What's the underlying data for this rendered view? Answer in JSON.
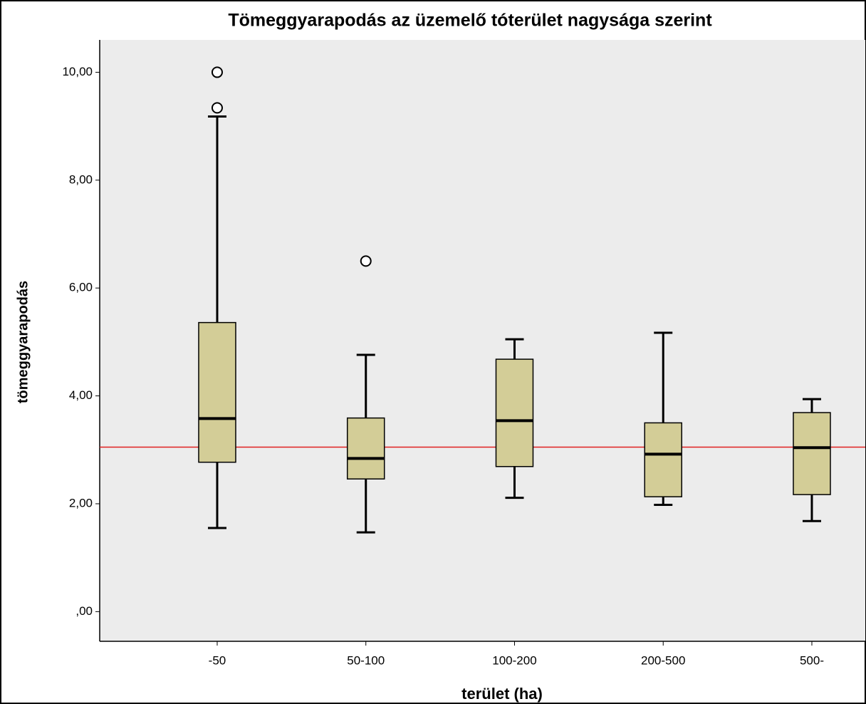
{
  "chart_data": {
    "type": "box",
    "title": "Tömeggyarapodás az üzemelő tóterület nagysága szerint",
    "x_label": "terület (ha)",
    "y_label": "tömeggyarapodás",
    "categories": [
      "-50",
      "50-100",
      "100-200",
      "200-500",
      "500-"
    ],
    "boxes": [
      {
        "min": 1.55,
        "q1": 2.77,
        "median": 3.58,
        "q3": 5.36,
        "max": 9.18,
        "outliers": [
          10.0,
          9.34
        ]
      },
      {
        "min": 1.47,
        "q1": 2.46,
        "median": 2.84,
        "q3": 3.59,
        "max": 4.76,
        "outliers": [
          6.5
        ]
      },
      {
        "min": 2.11,
        "q1": 2.69,
        "median": 3.54,
        "q3": 4.68,
        "max": 5.05,
        "outliers": []
      },
      {
        "min": 1.98,
        "q1": 2.13,
        "median": 2.92,
        "q3": 3.5,
        "max": 5.17,
        "outliers": []
      },
      {
        "min": 1.68,
        "q1": 2.17,
        "median": 3.04,
        "q3": 3.69,
        "max": 3.94,
        "outliers": []
      }
    ],
    "color": "#d3cd97",
    "reference_line": 3.05,
    "reference_color": "#e02020",
    "ylim": [
      -0.55,
      10.6
    ],
    "yticks": [
      {
        "value": 0,
        "label": ",00"
      },
      {
        "value": 2,
        "label": "2,00"
      },
      {
        "value": 4,
        "label": "4,00"
      },
      {
        "value": 6,
        "label": "6,00"
      },
      {
        "value": 8,
        "label": "8,00"
      },
      {
        "value": 10,
        "label": "10,00"
      }
    ]
  }
}
